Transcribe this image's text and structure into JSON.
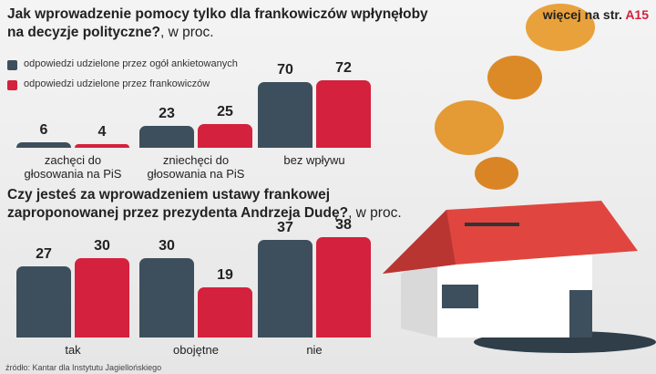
{
  "more": "więcej na str.",
  "more_ref": "A15",
  "source": "źródło: Kantar dla Instytutu Jagiellońskiego",
  "chart_data": [
    {
      "type": "bar",
      "title": "Jak wprowadzenie pomocy tylko dla frankowiczów wpłynęłoby na decyzje polityczne?",
      "unit": ", w proc.",
      "categories": [
        "zachęci do głosowania na PiS",
        "zniechęci do głosowania na PiS",
        "bez wpływu"
      ],
      "series": [
        {
          "name": "odpowiedzi udzielone przez ogół ankietowanych",
          "color": "#3d4f5c",
          "values": [
            6,
            23,
            70
          ]
        },
        {
          "name": "odpowiedzi udzielone przez frankowiczów",
          "color": "#d4213d",
          "values": [
            4,
            25,
            72
          ]
        }
      ],
      "ylim": [
        0,
        72
      ]
    },
    {
      "type": "bar",
      "title": "Czy jesteś za wprowadzeniem ustawy frankowej zaproponowanej przez prezydenta Andrzeja Dudę?",
      "unit": ", w proc.",
      "categories": [
        "tak",
        "obojętne",
        "nie"
      ],
      "series": [
        {
          "color": "#3d4f5c",
          "values": [
            27,
            30,
            37
          ]
        },
        {
          "color": "#d4213d",
          "values": [
            30,
            19,
            38
          ]
        }
      ],
      "ylim": [
        0,
        40
      ]
    }
  ]
}
